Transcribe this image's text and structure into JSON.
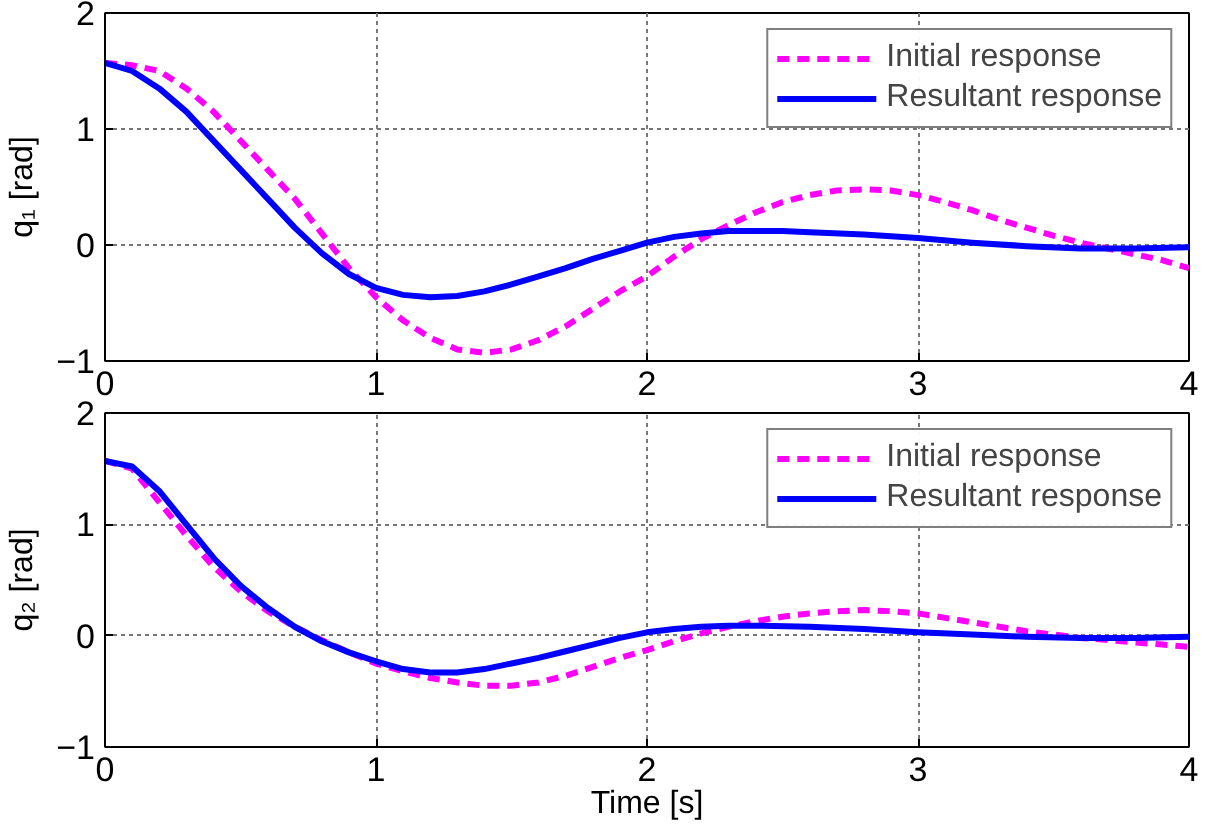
{
  "chart_data": [
    {
      "type": "line",
      "ylabel": "q₁ [rad]",
      "x": [
        0,
        0.1,
        0.2,
        0.3,
        0.4,
        0.5,
        0.6,
        0.7,
        0.8,
        0.9,
        1.0,
        1.1,
        1.2,
        1.3,
        1.4,
        1.5,
        1.6,
        1.7,
        1.8,
        1.9,
        2.0,
        2.1,
        2.2,
        2.3,
        2.4,
        2.5,
        2.6,
        2.7,
        2.8,
        2.9,
        3.0,
        3.1,
        3.2,
        3.3,
        3.4,
        3.5,
        3.6,
        3.7,
        3.8,
        3.9,
        4.0
      ],
      "series": [
        {
          "name": "Initial response",
          "color": "#ff00ff",
          "line_style": "dashed",
          "values": [
            1.57,
            1.55,
            1.5,
            1.35,
            1.15,
            0.9,
            0.65,
            0.4,
            0.1,
            -0.2,
            -0.45,
            -0.65,
            -0.8,
            -0.9,
            -0.93,
            -0.9,
            -0.82,
            -0.7,
            -0.55,
            -0.4,
            -0.27,
            -0.1,
            0.05,
            0.17,
            0.28,
            0.37,
            0.43,
            0.47,
            0.48,
            0.47,
            0.43,
            0.37,
            0.3,
            0.22,
            0.15,
            0.08,
            0.02,
            -0.03,
            -0.08,
            -0.13,
            -0.2
          ]
        },
        {
          "name": "Resultant response",
          "color": "#0000ff",
          "line_style": "solid",
          "x": [
            0,
            0.1,
            0.2,
            0.3,
            0.4,
            0.5,
            0.6,
            0.7,
            0.8,
            0.9,
            1.0,
            1.1,
            1.2,
            1.3,
            1.4,
            1.5,
            1.6,
            1.7,
            1.8,
            1.9,
            2.0,
            2.1,
            2.2,
            2.3,
            2.4,
            2.5,
            2.6,
            2.8,
            3.0,
            3.2,
            3.4,
            3.6,
            3.8,
            4.0
          ],
          "values": [
            1.57,
            1.5,
            1.35,
            1.15,
            0.9,
            0.65,
            0.4,
            0.15,
            -0.07,
            -0.25,
            -0.37,
            -0.43,
            -0.45,
            -0.44,
            -0.4,
            -0.34,
            -0.27,
            -0.2,
            -0.12,
            -0.05,
            0.02,
            0.07,
            0.1,
            0.12,
            0.12,
            0.12,
            0.11,
            0.09,
            0.06,
            0.02,
            -0.01,
            -0.03,
            -0.03,
            -0.02
          ]
        }
      ],
      "xlim": [
        0,
        4
      ],
      "ylim": [
        -1,
        2
      ],
      "xticks": [
        0,
        1,
        2,
        3,
        4
      ],
      "yticks": [
        -1,
        0,
        1,
        2
      ],
      "grid": true,
      "legend": "top right"
    },
    {
      "type": "line",
      "xlabel": "Time [s]",
      "ylabel": "q₂ [rad]",
      "x": [
        0,
        0.1,
        0.2,
        0.3,
        0.4,
        0.5,
        0.6,
        0.7,
        0.8,
        0.9,
        1.0,
        1.1,
        1.2,
        1.3,
        1.4,
        1.5,
        1.6,
        1.7,
        1.8,
        1.9,
        2.0,
        2.1,
        2.2,
        2.3,
        2.4,
        2.5,
        2.6,
        2.7,
        2.8,
        2.9,
        3.0,
        3.1,
        3.2,
        3.3,
        3.4,
        3.5,
        3.6,
        3.7,
        3.8,
        3.9,
        4.0
      ],
      "series": [
        {
          "name": "Initial response",
          "color": "#ff00ff",
          "line_style": "dashed",
          "values": [
            1.57,
            1.5,
            1.2,
            0.9,
            0.62,
            0.4,
            0.22,
            0.08,
            -0.04,
            -0.15,
            -0.25,
            -0.32,
            -0.38,
            -0.42,
            -0.45,
            -0.45,
            -0.42,
            -0.36,
            -0.28,
            -0.2,
            -0.13,
            -0.05,
            0.02,
            0.08,
            0.13,
            0.17,
            0.2,
            0.22,
            0.23,
            0.22,
            0.2,
            0.16,
            0.12,
            0.08,
            0.04,
            0.01,
            -0.02,
            -0.04,
            -0.06,
            -0.08,
            -0.1
          ]
        },
        {
          "name": "Resultant response",
          "color": "#0000ff",
          "line_style": "solid",
          "x": [
            0,
            0.1,
            0.2,
            0.3,
            0.4,
            0.5,
            0.6,
            0.7,
            0.8,
            0.9,
            1.0,
            1.1,
            1.2,
            1.3,
            1.4,
            1.5,
            1.6,
            1.7,
            1.8,
            1.9,
            2.0,
            2.1,
            2.2,
            2.3,
            2.4,
            2.6,
            2.8,
            3.0,
            3.2,
            3.4,
            3.6,
            3.8,
            4.0
          ],
          "values": [
            1.57,
            1.52,
            1.3,
            1.0,
            0.7,
            0.45,
            0.25,
            0.08,
            -0.05,
            -0.15,
            -0.23,
            -0.3,
            -0.33,
            -0.33,
            -0.3,
            -0.25,
            -0.2,
            -0.14,
            -0.08,
            -0.02,
            0.03,
            0.06,
            0.08,
            0.09,
            0.09,
            0.08,
            0.06,
            0.03,
            0.01,
            -0.01,
            -0.02,
            -0.02,
            -0.01
          ]
        }
      ],
      "xlim": [
        0,
        4
      ],
      "ylim": [
        -1,
        2
      ],
      "xticks": [
        0,
        1,
        2,
        3,
        4
      ],
      "yticks": [
        -1,
        0,
        1,
        2
      ],
      "grid": true,
      "legend": "top right"
    }
  ]
}
